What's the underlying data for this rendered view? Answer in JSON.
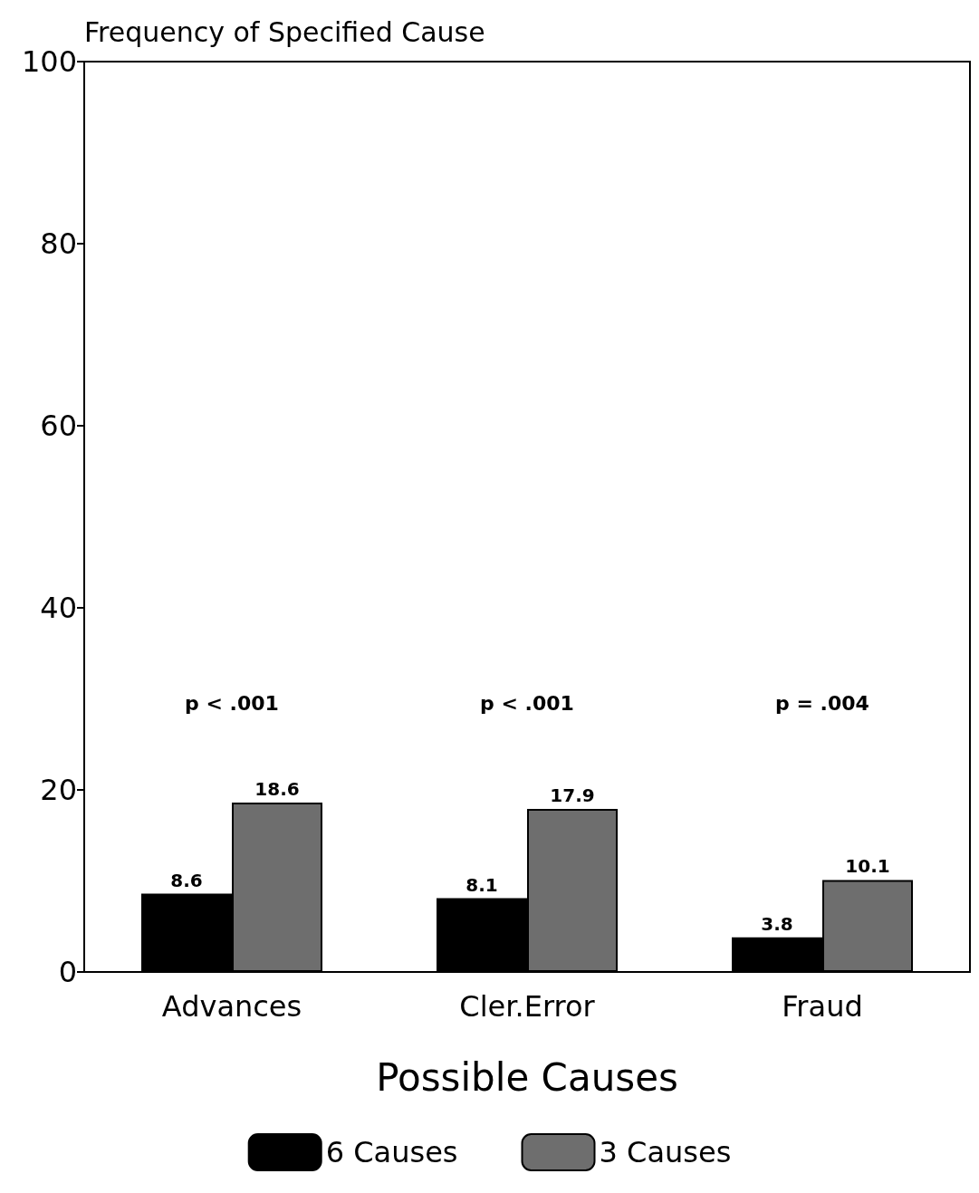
{
  "chart_data": {
    "type": "bar",
    "ylabel": "Frequency of Specified Cause",
    "xlabel": "Possible Causes",
    "categories": [
      "Advances",
      "Cler.Error",
      "Fraud"
    ],
    "series": [
      {
        "name": "6 Causes",
        "color": "#000000",
        "values": [
          8.6,
          8.1,
          3.8
        ]
      },
      {
        "name": "3 Causes",
        "color": "#6e6e6e",
        "values": [
          18.6,
          17.9,
          10.1
        ]
      }
    ],
    "ylim": [
      0,
      100
    ],
    "yticks": [
      0,
      20,
      40,
      60,
      80,
      100
    ],
    "grid": false,
    "legend": "bottom",
    "data_labels": true,
    "annotations": [
      "p < .001",
      "p < .001",
      "p = .004"
    ]
  }
}
